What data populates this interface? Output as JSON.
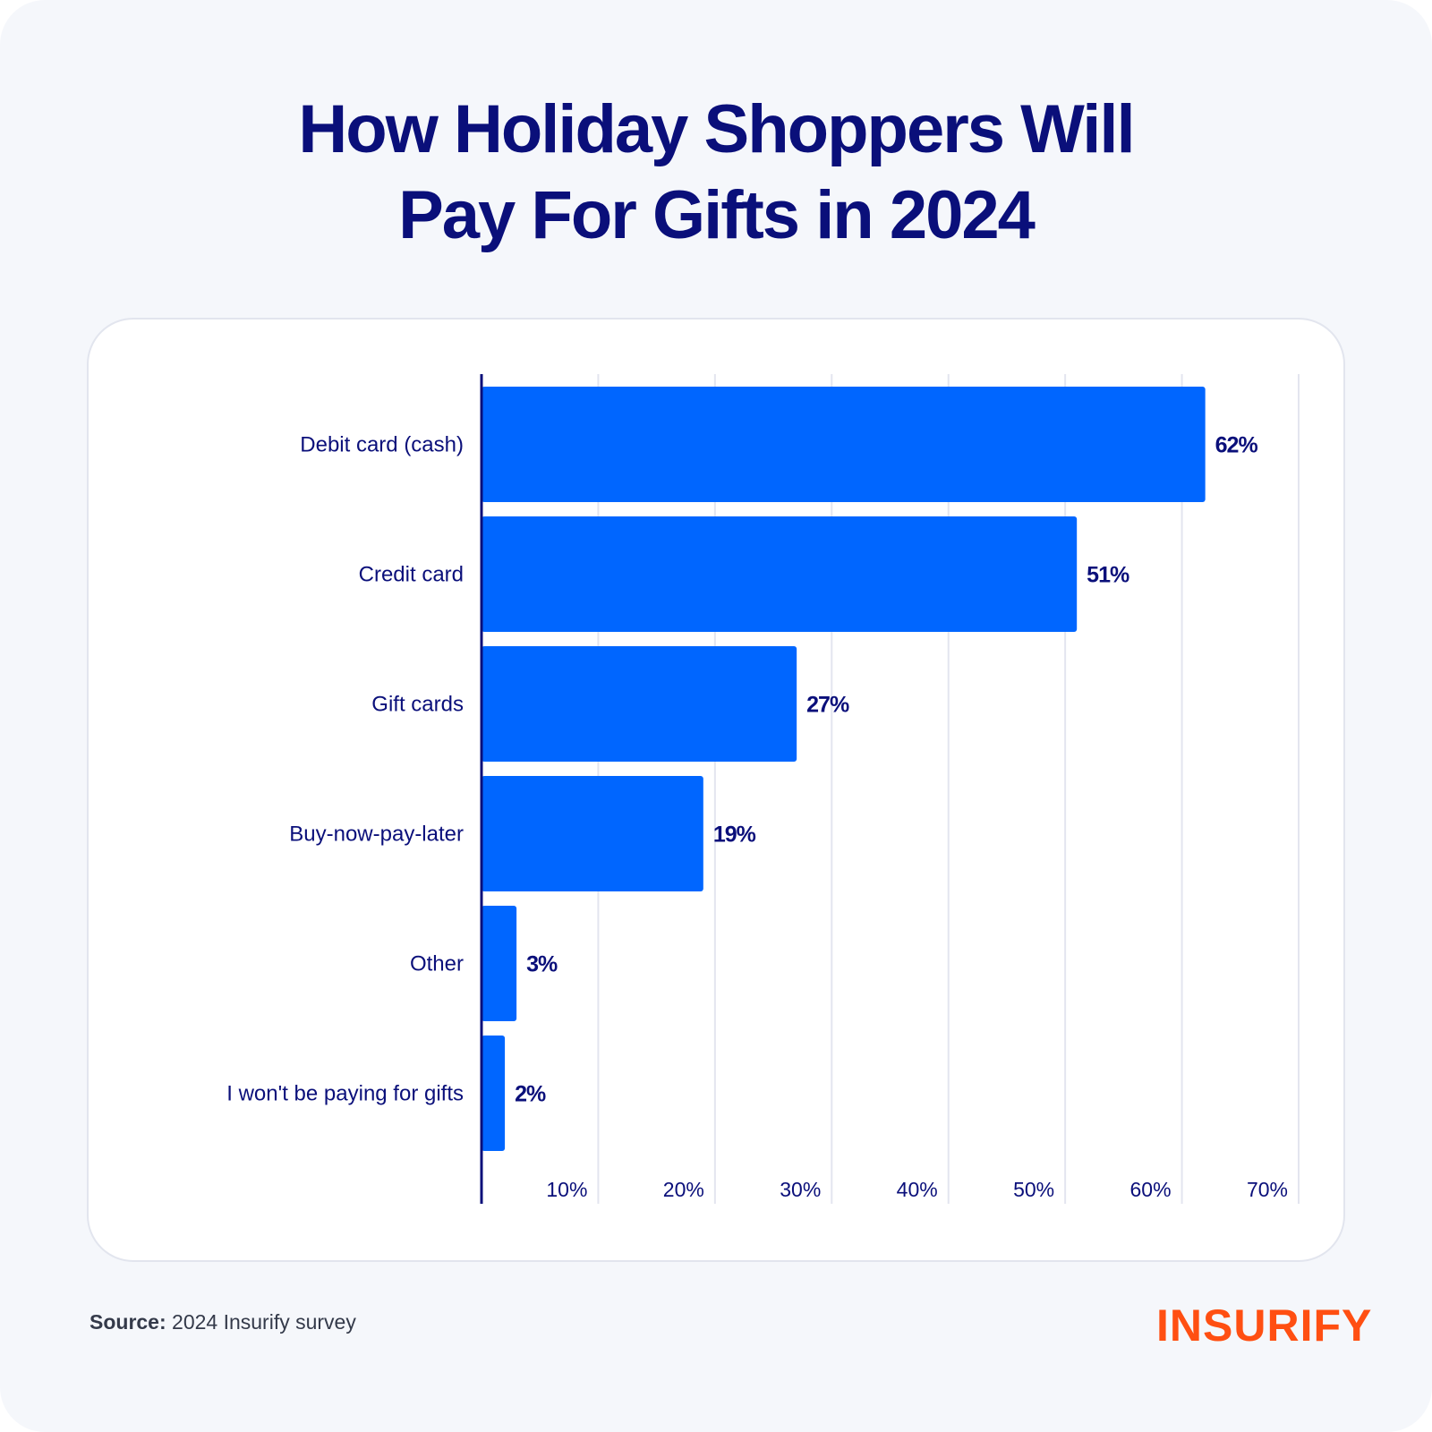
{
  "chart_data": {
    "type": "bar",
    "orientation": "horizontal",
    "title": "How Holiday Shoppers Will Pay For Gifts in 2024",
    "title_lines": [
      "How Holiday Shoppers Will",
      "Pay For Gifts in 2024"
    ],
    "categories": [
      "Debit card (cash)",
      "Credit card",
      "Gift cards",
      "Buy-now-pay-later",
      "Other",
      "I won't be paying for gifts"
    ],
    "values": [
      62,
      51,
      27,
      19,
      3,
      2
    ],
    "value_labels": [
      "62%",
      "51%",
      "27%",
      "19%",
      "3%",
      "2%"
    ],
    "xticks": [
      10,
      20,
      30,
      40,
      50,
      60,
      70
    ],
    "xtick_labels": [
      "10%",
      "20%",
      "30%",
      "40%",
      "50%",
      "60%",
      "70%"
    ],
    "xlim": [
      0,
      70
    ],
    "xlabel": "",
    "ylabel": "",
    "grid": true,
    "bar_color": "#0066ff"
  },
  "footer": {
    "source_label": "Source:",
    "source_text": "2024 Insurify survey",
    "logo": "INSURIFY"
  }
}
